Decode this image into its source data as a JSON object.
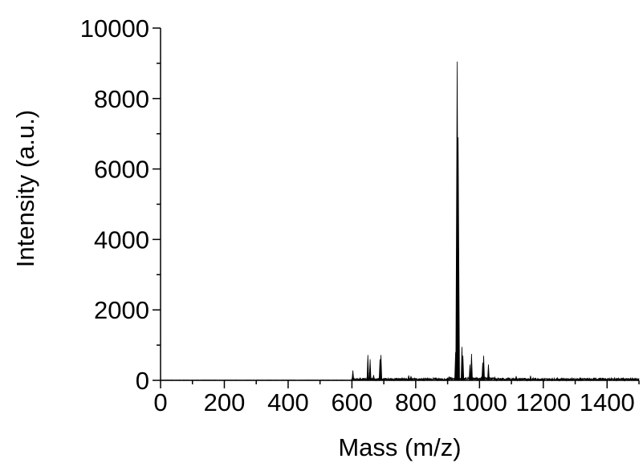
{
  "chart_data": {
    "type": "line",
    "title": "",
    "xlabel": "Mass (m/z)",
    "ylabel": "Intensity (a.u.)",
    "xlim": [
      0,
      1500
    ],
    "ylim": [
      0,
      10000
    ],
    "x_ticks": [
      0,
      200,
      400,
      600,
      800,
      1000,
      1200,
      1400
    ],
    "x_tick_labels": [
      "0",
      "200",
      "400",
      "600",
      "800",
      "1000",
      "1200",
      "1400"
    ],
    "y_ticks": [
      0,
      2000,
      4000,
      6000,
      8000,
      10000
    ],
    "y_tick_labels": [
      "0",
      "2000",
      "4000",
      "6000",
      "8000",
      "10000"
    ],
    "grid": false,
    "baseline_noise": 60,
    "peaks": [
      {
        "mz": 603,
        "intensity": 280
      },
      {
        "mz": 650,
        "intensity": 720
      },
      {
        "mz": 657,
        "intensity": 600
      },
      {
        "mz": 668,
        "intensity": 150
      },
      {
        "mz": 688,
        "intensity": 600
      },
      {
        "mz": 691,
        "intensity": 720
      },
      {
        "mz": 778,
        "intensity": 140
      },
      {
        "mz": 785,
        "intensity": 120
      },
      {
        "mz": 925,
        "intensity": 800
      },
      {
        "mz": 930,
        "intensity": 9050
      },
      {
        "mz": 933,
        "intensity": 6900
      },
      {
        "mz": 945,
        "intensity": 950
      },
      {
        "mz": 948,
        "intensity": 700
      },
      {
        "mz": 970,
        "intensity": 450
      },
      {
        "mz": 975,
        "intensity": 750
      },
      {
        "mz": 1010,
        "intensity": 500
      },
      {
        "mz": 1013,
        "intensity": 700
      },
      {
        "mz": 1028,
        "intensity": 450
      },
      {
        "mz": 1115,
        "intensity": 120
      },
      {
        "mz": 1160,
        "intensity": 130
      }
    ],
    "colors": {
      "line": "#000000",
      "axis": "#000000"
    }
  }
}
